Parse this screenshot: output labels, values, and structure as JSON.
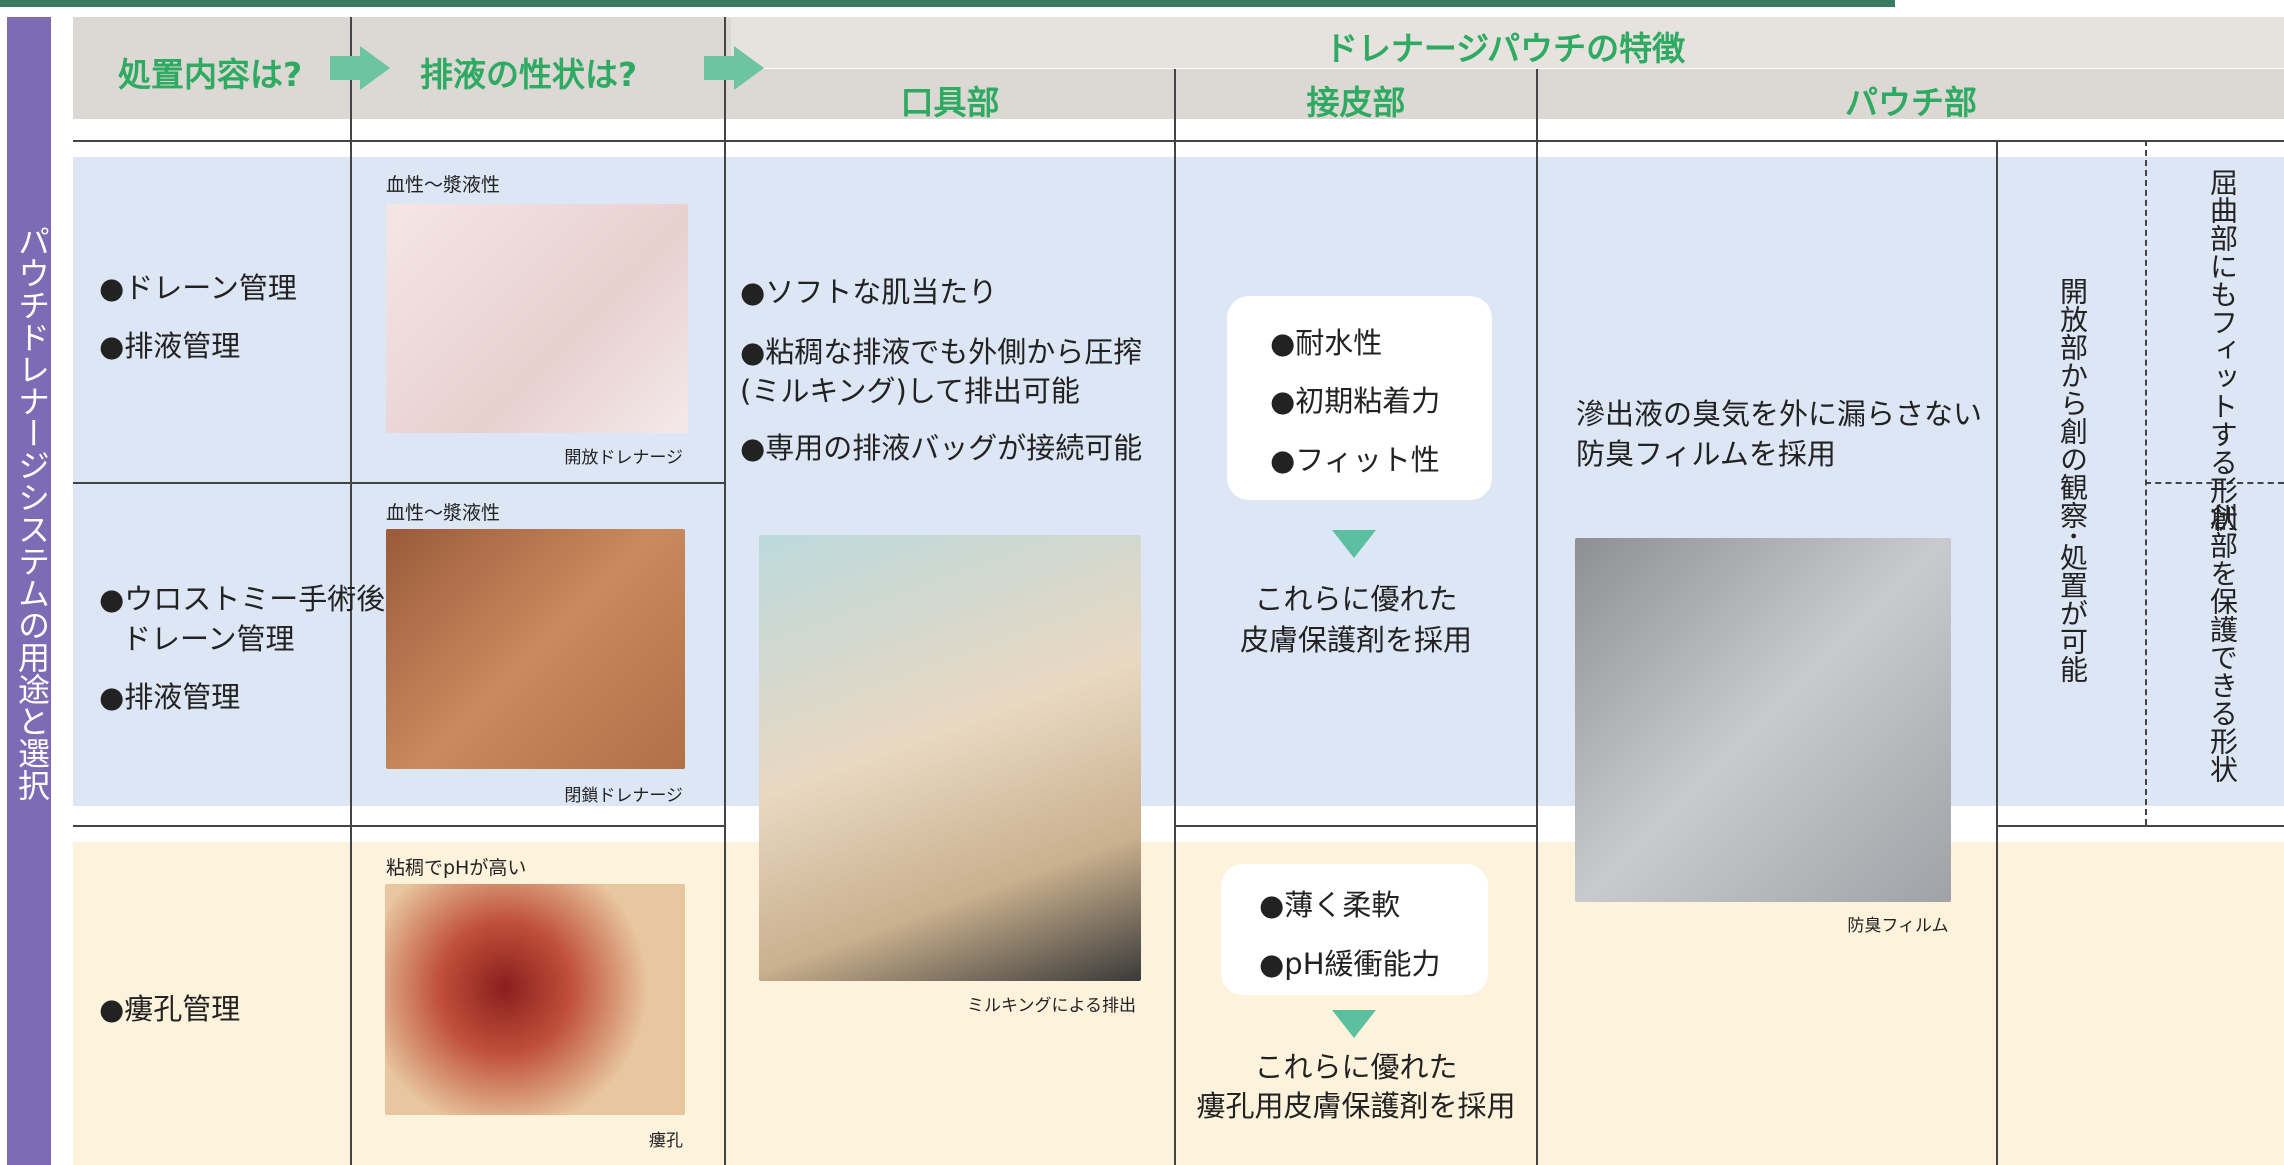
{
  "side_label": "パウチドレナージシステムの用途と選択",
  "header": {
    "treatment": "処置内容は?",
    "fluid": "排液の性状は?",
    "features": "ドレナージパウチの特徴",
    "mouth": "口具部",
    "skin": "接皮部",
    "pouch": "パウチ部"
  },
  "rows": [
    {
      "treatments": [
        "●ドレーン管理",
        "●排液管理"
      ],
      "fluid": "血性〜漿液性",
      "photo_caption": "開放ドレナージ"
    },
    {
      "treatments": [
        "●ウロストミー手術後",
        "ドレーン管理",
        "●排液管理"
      ],
      "fluid": "血性〜漿液性",
      "photo_caption": "閉鎖ドレナージ"
    },
    {
      "treatments": [
        "●瘻孔管理"
      ],
      "fluid": "粘稠でpHが高い",
      "photo_caption": "瘻孔"
    }
  ],
  "mouth": {
    "items": [
      "●ソフトな肌当たり",
      "●粘稠な排液でも外側から圧搾",
      "(ミルキング)して排出可能",
      "●専用の排液バッグが接続可能"
    ],
    "photo_caption": "ミルキングによる排出"
  },
  "skin": [
    {
      "items": [
        "●耐水性",
        "●初期粘着力",
        "●フィット性"
      ],
      "result": [
        "これらに優れた",
        "皮膚保護剤を採用"
      ]
    },
    {
      "items": [
        "●薄く柔軟",
        "●pH緩衝能力"
      ],
      "result": [
        "これらに優れた",
        "瘻孔用皮膚保護剤を採用"
      ]
    }
  ],
  "pouch": {
    "text": [
      "滲出液の臭気を外に漏らさない",
      "防臭フィルムを採用"
    ],
    "photo_caption": "防臭フィルム",
    "open_part": "開放部から創の観察･処置が可能",
    "shape_1": "屈曲部にもフィットする形状",
    "shape_2": "創部を保護できる形状"
  }
}
